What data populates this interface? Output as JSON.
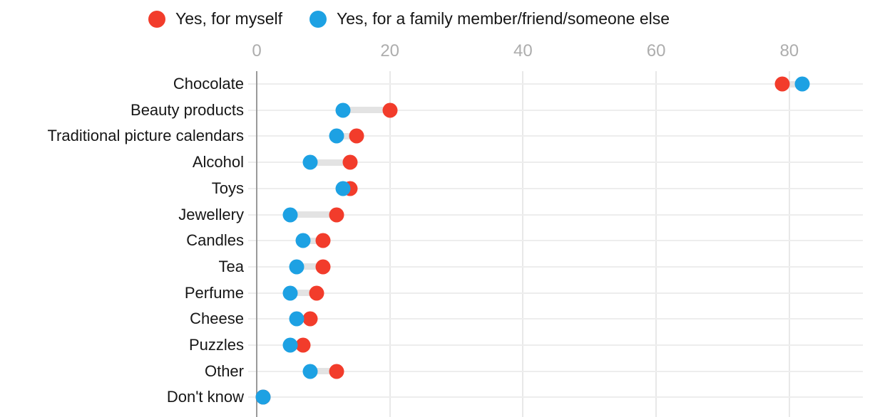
{
  "chart_data": {
    "type": "scatter",
    "subtype": "dumbbell-dot-plot",
    "title": "",
    "xlabel": "",
    "ylabel": "",
    "xticks": [
      0,
      20,
      40,
      60,
      80
    ],
    "xlim": [
      0,
      91
    ],
    "grid": true,
    "legend_position": "top",
    "categories": [
      "Chocolate",
      "Beauty products",
      "Traditional picture calendars",
      "Alcohol",
      "Toys",
      "Jewellery",
      "Candles",
      "Tea",
      "Perfume",
      "Cheese",
      "Puzzles",
      "Other",
      "Don't know"
    ],
    "series": [
      {
        "name": "Yes, for myself",
        "color": "#f23c2b",
        "values": [
          79,
          20,
          15,
          14,
          14,
          12,
          10,
          10,
          9,
          8,
          7,
          12,
          1
        ]
      },
      {
        "name": "Yes, for a family member/friend/someone else",
        "color": "#1da1e3",
        "values": [
          82,
          13,
          12,
          8,
          13,
          5,
          7,
          6,
          5,
          6,
          5,
          8,
          1
        ]
      }
    ],
    "colors": {
      "row_line": "#ededed",
      "connector": "#e3e3e3",
      "gridline": "#e8e8e8",
      "zero_axis": "#9a9a9a",
      "tick_text": "#adadad",
      "label_text": "#161616"
    }
  }
}
